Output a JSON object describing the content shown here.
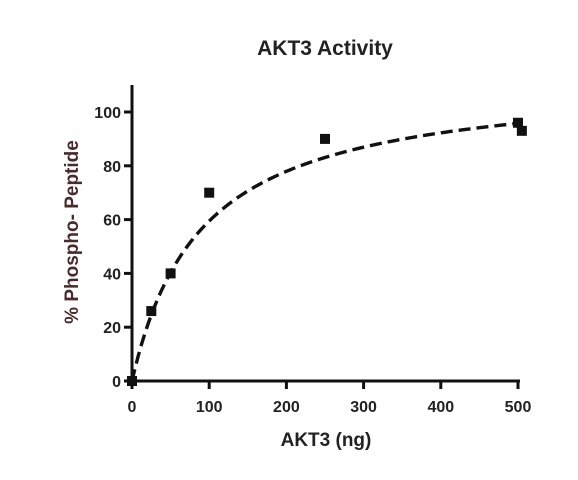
{
  "chart_data": {
    "type": "scatter",
    "title": "AKT3 Activity",
    "xlabel": "AKT3 (ng)",
    "ylabel": "% Phospho- Peptide",
    "xlim": [
      0,
      500
    ],
    "ylim": [
      0,
      100
    ],
    "x_ticks": [
      0,
      100,
      200,
      300,
      400,
      500
    ],
    "y_ticks": [
      0,
      20,
      40,
      60,
      80,
      100
    ],
    "grid": false,
    "legend": "none",
    "series": [
      {
        "marker": "square",
        "color": "#111111",
        "points": [
          {
            "x": 0,
            "y": 0
          },
          {
            "x": 25,
            "y": 26
          },
          {
            "x": 50,
            "y": 40
          },
          {
            "x": 100,
            "y": 70
          },
          {
            "x": 250,
            "y": 90
          },
          {
            "x": 500,
            "y": 96
          },
          {
            "x": 505,
            "y": 93
          }
        ]
      }
    ],
    "fit": {
      "style": "dashed",
      "color": "#111111",
      "model": "hyperbola",
      "ymax": 113,
      "k": 90
    }
  }
}
